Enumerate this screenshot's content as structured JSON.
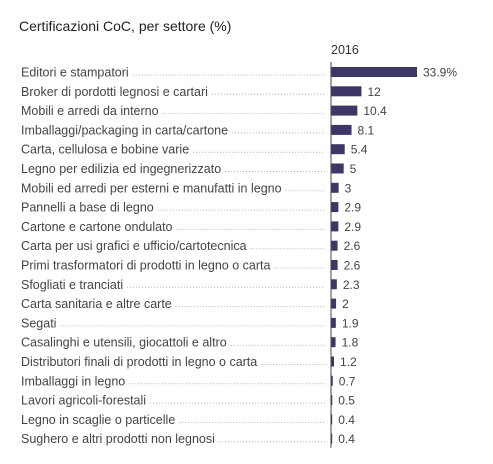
{
  "chart_data": {
    "type": "bar",
    "orientation": "horizontal",
    "title": "Certificazioni CoC, per settore (%)",
    "series": [
      {
        "name": "2016",
        "values": [
          33.9,
          12,
          10.4,
          8.1,
          5.4,
          5,
          3,
          2.9,
          2.9,
          2.6,
          2.6,
          2.3,
          2,
          1.9,
          1.8,
          1.2,
          0.7,
          0.5,
          0.4,
          0.4
        ],
        "labels": [
          "33.9%",
          "12",
          "10.4",
          "8.1",
          "5.4",
          "5",
          "3",
          "2.9",
          "2.9",
          "2.6",
          "2.6",
          "2.3",
          "2",
          "1.9",
          "1.8",
          "1.2",
          "0.7",
          "0.5",
          "0.4",
          "0.4"
        ]
      }
    ],
    "categories": [
      "Editori e stampatori",
      "Broker di pordotti legnosi e cartari",
      "Mobili e arredi da interno",
      "Imballaggi/packaging in carta/cartone",
      "Carta, cellulosa e bobine varie",
      "Legno per edilizia ed ingegnerizzato",
      "Mobili ed arredi per esterni e manufatti in legno",
      "Pannelli a base di legno",
      "Cartone e cartone ondulato",
      "Carta per usi grafici e ufficio/cartotecnica",
      "Primi trasformatori di prodotti in legno o carta",
      "Sfogliati e tranciati",
      "Carta sanitaria e altre carte",
      "Segati",
      "Casalinghi e utensili, giocattoli e altro",
      "Distributori finali di prodotti in legno o carta",
      "Imballaggi in legno",
      "Lavori agricoli-forestali",
      "Legno in scaglie o particelle",
      "Sughero e altri prodotti non legnosi"
    ],
    "xlim": [
      0,
      33.9
    ],
    "grid": false,
    "bar_color": "#3d3768",
    "dotted_leader_color": "#b0b0b0",
    "axis_color": "#444444"
  }
}
